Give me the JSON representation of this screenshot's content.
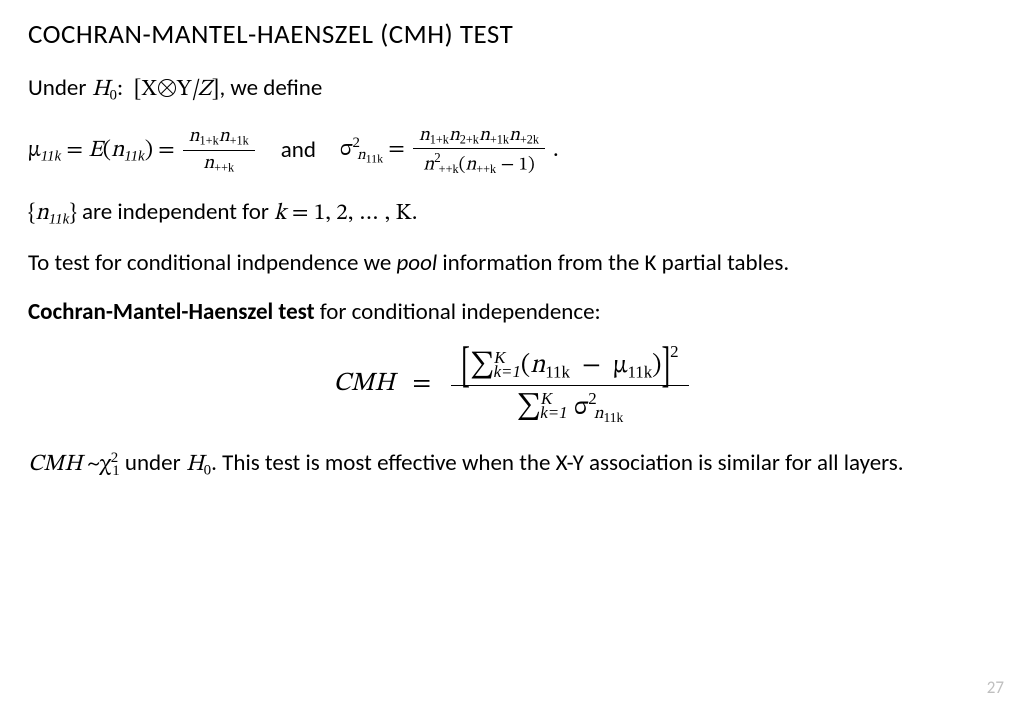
{
  "title": "COCHRAN-MANTEL-HAENSZEL (CMH) TEST",
  "line1_a": "Under ",
  "line1_b": ", we define",
  "h0": "H",
  "h0_sub": "0",
  "bracket_open": "[",
  "bracket_close": "]",
  "X": "X",
  "Y": "Y",
  "barZ": "|Z",
  "mu": "μ",
  "sub11k": "11k",
  "eq": " = ",
  "E": "E",
  "open": "(",
  "close": ")",
  "n": "n",
  "frac1_num": "n₁₊ₖ n₊₁ₖ",
  "frac1_den": "n₊₊ₖ",
  "and": "and",
  "sigma": "σ",
  "sup2": "2",
  "sub_n11k": "n₁₁ₖ",
  "frac2_num": "n₁₊ₖ n₂₊ₖ n₊₁ₖ n₊₂ₖ",
  "frac2_den_a": "n",
  "frac2_den_b": "₊₊ₖ",
  "frac2_den_c": "(n₊₊ₖ − 1)",
  "period": ".",
  "line3_a": " are independent for ",
  "k": "k",
  "range": " = 1, 2, … , K",
  "line4_a": "To test for conditional indpendence we ",
  "pool": "pool",
  "line4_b": " information from the K partial tables.",
  "line5_a": "Cochran-Mantel-Haenszel test",
  "line5_b": " for conditional independence:",
  "CMH": "CMH",
  "big_num_a": "∑",
  "big_num_sub": "k=1",
  "big_num_sup": "K",
  "big_num_b": "(n",
  "big_num_c": "  −  μ",
  "big_num_d": ")",
  "big_den_a": "∑",
  "line7_a": " under ",
  "line7_b": ".  This test is most effective when the X-Y association is similar for all layers.",
  "tilde": " ~",
  "chi": "χ",
  "chi_sup": "2",
  "chi_sub": "1",
  "pagenum": "27",
  "colors": {
    "text": "#000000",
    "bg": "#ffffff",
    "pagenum": "#bfbfbf"
  }
}
